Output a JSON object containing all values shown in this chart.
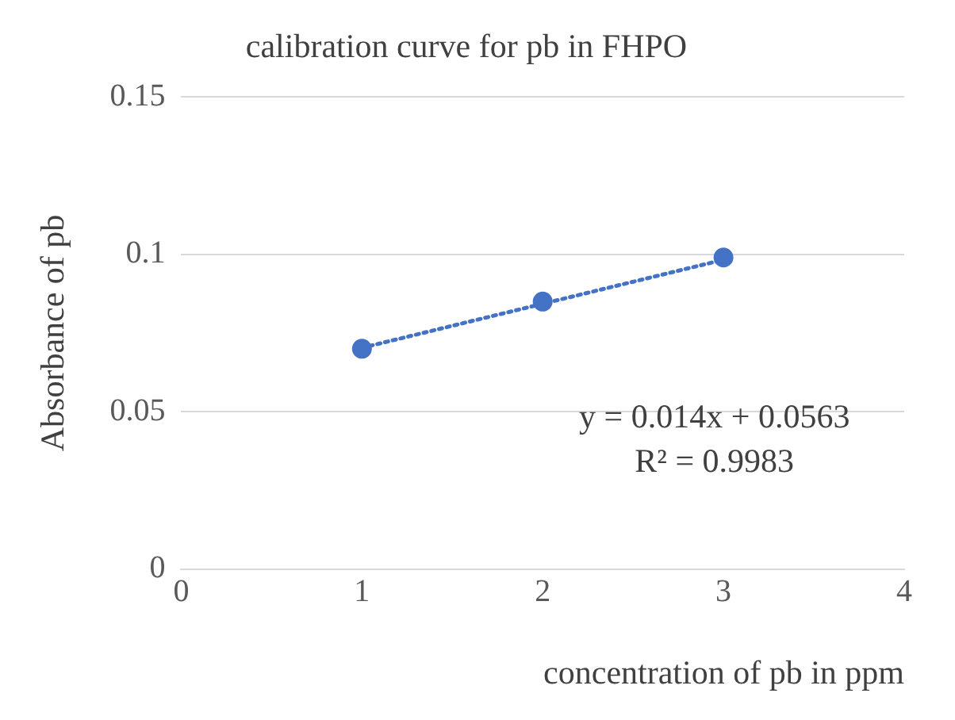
{
  "chart_data": {
    "type": "scatter",
    "title": "calibration curve for pb in FHPO",
    "xlabel": "concentration of pb in ppm",
    "ylabel": "Absorbance of pb",
    "series": [
      {
        "color": "#4472c4",
        "x": [
          1,
          2,
          3
        ],
        "values": [
          0.07,
          0.085,
          0.099
        ],
        "marker": "circle"
      },
      {
        "type": "line",
        "color": "#4472c4",
        "x": [
          1,
          3
        ],
        "values": [
          0.0703,
          0.0983
        ],
        "line_style": "dotted",
        "marker": "none"
      }
    ],
    "xlim": [
      0,
      4
    ],
    "xticks": [
      0,
      1,
      2,
      3,
      4
    ],
    "ylim": [
      0,
      0.15
    ],
    "yticks": [
      0,
      0.05,
      {
        "value": 0.1,
        "label": "0.1"
      },
      0.15
    ],
    "grid": "y",
    "annotations": [
      "y = 0.014x + 0.0563",
      "R² = 0.9983"
    ]
  }
}
